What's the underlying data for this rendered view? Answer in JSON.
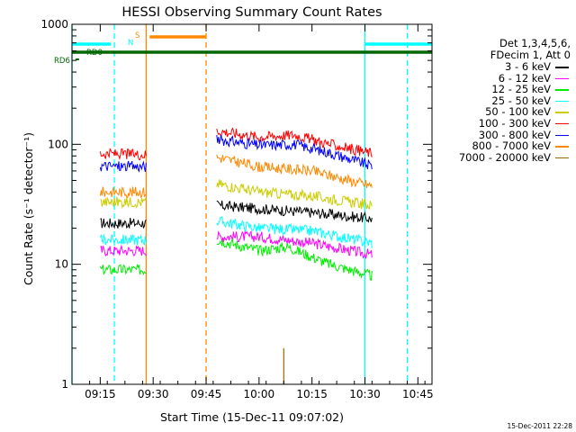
{
  "chart_data": {
    "type": "line",
    "title": "HESSI Observing Summary Count Rates",
    "xlabel": "Start Time (15-Dec-11 09:07:02)",
    "ylabel": "Count Rate (s⁻¹ detector⁻¹)",
    "y_scale": "log",
    "ylim": [
      1,
      1000
    ],
    "xlim": [
      "09:07",
      "10:49"
    ],
    "x_ticks": [
      "09:15",
      "09:30",
      "09:45",
      "10:00",
      "10:15",
      "10:30",
      "10:45"
    ],
    "y_ticks": [
      "1",
      "10",
      "100",
      "1000"
    ],
    "grid": false,
    "legend_position": "right-top",
    "legend_header": [
      "Det 1,3,4,5,6,",
      "FDecim 1, Att 0"
    ],
    "series": [
      {
        "name": "3 - 6 keV",
        "color": "#000000",
        "points": [
          [
            "09:15",
            22
          ],
          [
            "09:28",
            22
          ],
          [
            "09:48",
            31
          ],
          [
            "10:00",
            29
          ],
          [
            "10:15",
            27
          ],
          [
            "10:32",
            24
          ]
        ]
      },
      {
        "name": "6 - 12 keV",
        "color": "#ff00ff",
        "points": [
          [
            "09:15",
            13
          ],
          [
            "09:28",
            13
          ],
          [
            "09:48",
            17
          ],
          [
            "10:00",
            17
          ],
          [
            "10:15",
            15
          ],
          [
            "10:32",
            12
          ]
        ]
      },
      {
        "name": "12 - 25 keV",
        "color": "#00ee00",
        "points": [
          [
            "09:15",
            9
          ],
          [
            "09:28",
            9
          ],
          [
            "09:48",
            16
          ],
          [
            "10:00",
            13
          ],
          [
            "10:08",
            14
          ],
          [
            "10:20",
            10
          ],
          [
            "10:32",
            8
          ]
        ]
      },
      {
        "name": "25 - 50 keV",
        "color": "#00ffff",
        "points": [
          [
            "09:15",
            16
          ],
          [
            "09:28",
            16
          ],
          [
            "09:48",
            23
          ],
          [
            "10:00",
            20
          ],
          [
            "10:15",
            19
          ],
          [
            "10:32",
            15
          ]
        ]
      },
      {
        "name": "50 - 100 keV",
        "color": "#cccc00",
        "points": [
          [
            "09:15",
            33
          ],
          [
            "09:28",
            33
          ],
          [
            "09:48",
            47
          ],
          [
            "10:00",
            40
          ],
          [
            "10:15",
            37
          ],
          [
            "10:32",
            31
          ]
        ]
      },
      {
        "name": "100 - 300 keV",
        "color": "#ff0000",
        "points": [
          [
            "09:15",
            84
          ],
          [
            "09:28",
            82
          ],
          [
            "09:48",
            130
          ],
          [
            "10:00",
            115
          ],
          [
            "10:10",
            120
          ],
          [
            "10:20",
            100
          ],
          [
            "10:32",
            84
          ]
        ]
      },
      {
        "name": "300 - 800 keV",
        "color": "#0000ff",
        "points": [
          [
            "09:15",
            66
          ],
          [
            "09:28",
            65
          ],
          [
            "09:48",
            110
          ],
          [
            "10:00",
            98
          ],
          [
            "10:10",
            100
          ],
          [
            "10:20",
            85
          ],
          [
            "10:32",
            66
          ]
        ]
      },
      {
        "name": "800 - 7000 keV",
        "color": "#ff8800",
        "points": [
          [
            "09:15",
            40
          ],
          [
            "09:28",
            40
          ],
          [
            "09:48",
            78
          ],
          [
            "10:00",
            65
          ],
          [
            "10:15",
            60
          ],
          [
            "10:32",
            45
          ]
        ]
      },
      {
        "name": "7000 - 20000 keV",
        "color": "#996600",
        "points": [
          [
            "10:07",
            1
          ],
          [
            "10:07",
            2
          ]
        ]
      }
    ],
    "flag_labels": [
      "N",
      "S",
      "RD0",
      "RD6"
    ],
    "flags": [
      {
        "label": "N",
        "color": "#00ffff",
        "segments": [
          [
            "09:07",
            "09:18"
          ],
          [
            "10:30",
            "10:49"
          ]
        ]
      },
      {
        "label": "S",
        "color": "#ff8800",
        "segments": [
          [
            "09:29",
            "09:45"
          ]
        ]
      },
      {
        "label": "RD0",
        "color": "#006600",
        "segments": [
          [
            "09:07",
            "10:49"
          ]
        ]
      },
      {
        "label": "RD6",
        "color": "#006600",
        "segments": [
          [
            "09:08",
            "09:09"
          ]
        ]
      }
    ],
    "vertical_markers": [
      {
        "time": "09:07",
        "color": "#00ffff",
        "style": "solid"
      },
      {
        "time": "09:19",
        "color": "#00ffff",
        "style": "dashed"
      },
      {
        "time": "09:28",
        "color": "#ff8800",
        "style": "solid"
      },
      {
        "time": "09:45",
        "color": "#ff8800",
        "style": "dashed"
      },
      {
        "time": "10:30",
        "color": "#00ffff",
        "style": "solid"
      },
      {
        "time": "10:42",
        "color": "#00ffff",
        "style": "dashed"
      }
    ]
  },
  "footer_date": "15-Dec-2011 22:28"
}
